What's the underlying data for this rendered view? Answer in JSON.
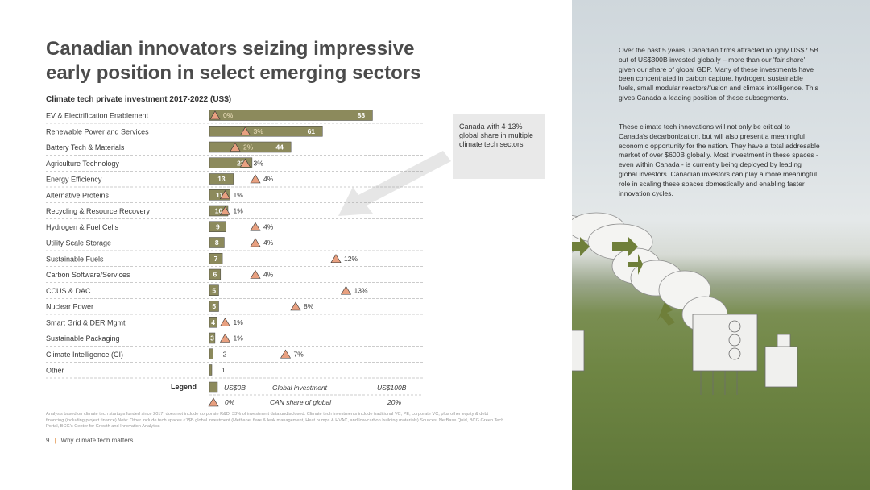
{
  "title": "Canadian innovators seizing impressive early position in select emerging sectors",
  "chart_title": "Climate tech private investment 2017-2022 (US$)",
  "callout": "Canada with 4-13% global share in multiple climate tech sectors",
  "paragraph1": "Over the past 5 years, Canadian firms attracted roughly US$7.5B out of US$300B invested globally – more than our 'fair share' given our share of global GDP. Many of these investments have been concentrated in carbon capture, hydrogen, sustainable fuels, small modular reactors/fusion and climate intelligence. This gives Canada a leading position of these subsegments.",
  "paragraph2": "These climate tech innovations will not only be critical to Canada's decarbonization, but will also present a meaningful economic opportunity for the nation. They have a total addresable market of over $600B globally. Most investment in these spaces - even within Canada - is currently being deployed by leading global investors. Canadian investors can play a more meaningful role in scaling these spaces domestically and enabling faster innovation cycles.",
  "footnote": "Analysis based on climate tech startups funded since 2017; does not include corporate R&D. 33% of investment data undisclosed. Climate tech investments include traditional VC, PE, corporate VC, plus other equity & debt financing (including project finance) Note: Other include tech spaces <1$B global investment (Methane, flare & leak management, Heat pumps & HVAC, and low-carbon building materials) Sources: NetBase Quid, BCG Green Tech Portal, BCG's Center for Growth and Innovation Analytics",
  "page_number": "9",
  "page_section": "Why climate tech matters",
  "colors": {
    "bar": "#8c8a5c",
    "triangle": "#e8a080",
    "accent": "#e08a3c"
  },
  "legend": {
    "label": "Legend",
    "bar_start": "US$0B",
    "bar_caption": "Global investment",
    "bar_end": "US$100B",
    "tri_start": "0%",
    "tri_caption": "CAN share of global",
    "tri_end": "20%"
  },
  "chart_data": {
    "type": "bar",
    "orientation": "horizontal",
    "title": "Climate tech private investment 2017-2022 (US$)",
    "xlim_investment": [
      0,
      100
    ],
    "xlim_share": [
      0,
      20
    ],
    "categories": [
      "EV & Electrification Enablement",
      "Renewable Power and Services",
      "Battery Tech & Materials",
      "Agriculture Technology",
      "Energy Efficiency",
      "Alternative Proteins",
      "Recycling & Resource Recovery",
      "Hydrogen & Fuel Cells",
      "Utility Scale Storage",
      "Sustainable Fuels",
      "Carbon Software/Services",
      "CCUS & DAC",
      "Nuclear Power",
      "Smart Grid & DER Mgmt",
      "Sustainable Packaging",
      "Climate Intelligence (CI)",
      "Other"
    ],
    "series": [
      {
        "name": "Global investment (US$B)",
        "values": [
          88,
          61,
          44,
          23,
          13,
          11,
          10,
          9,
          8,
          7,
          6,
          5,
          5,
          4,
          3,
          2,
          1
        ]
      },
      {
        "name": "CAN share of global (%)",
        "values": [
          0,
          3,
          2,
          3,
          4,
          1,
          1,
          4,
          4,
          12,
          4,
          13,
          8,
          1,
          1,
          7,
          null
        ],
        "labels": [
          "0%",
          "3%",
          "2%",
          "3%",
          "4%",
          "1%",
          "1%",
          "4%",
          "4%",
          "12%",
          "4%",
          "13%",
          "8%",
          "1%",
          "1%",
          "7%",
          ""
        ]
      }
    ]
  }
}
